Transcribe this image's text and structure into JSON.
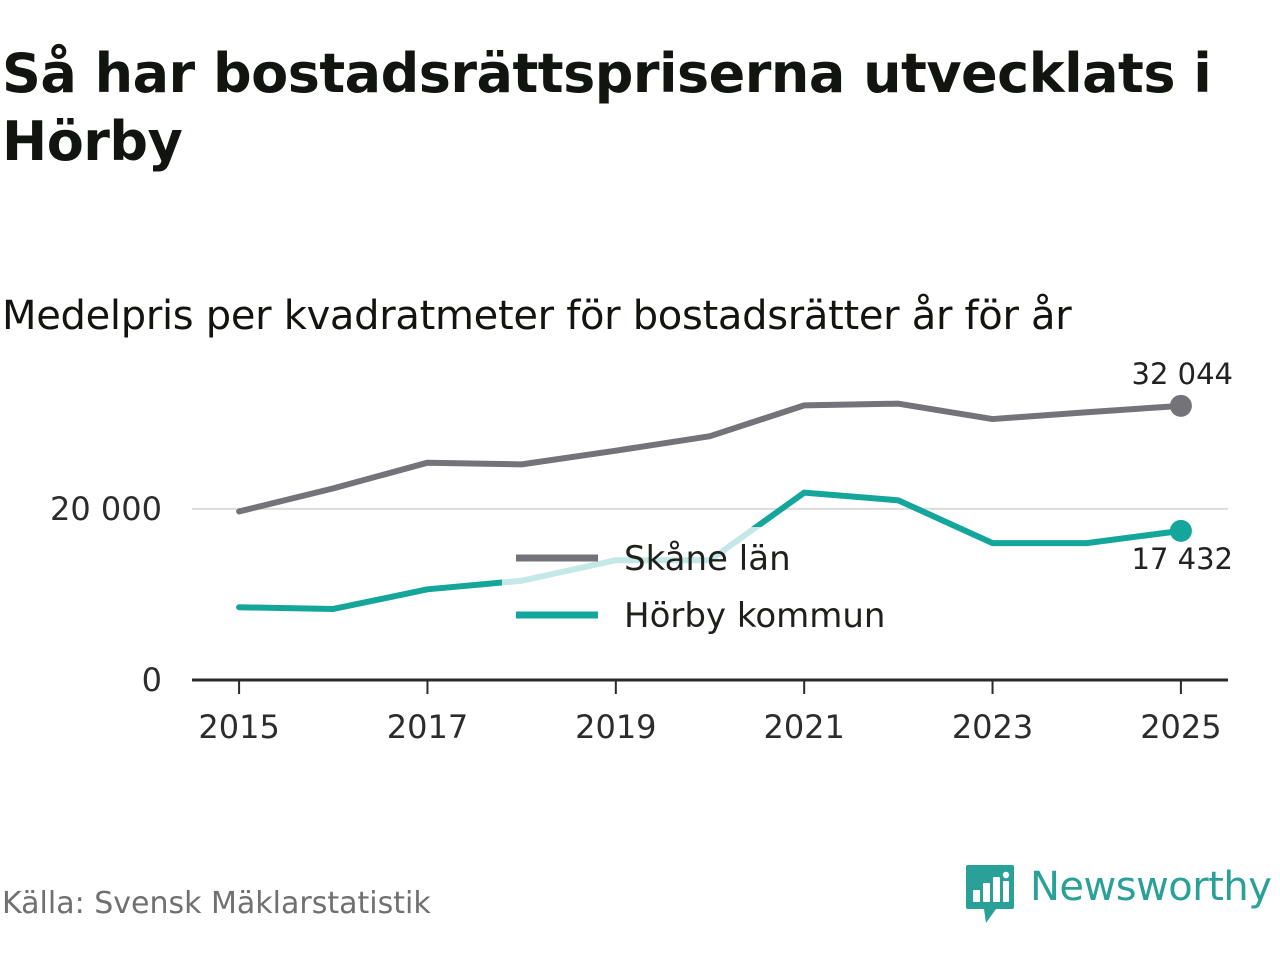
{
  "title": "Så har bostadsrättspriserna utvecklats i Hörby",
  "subtitle": "Medelpris per kvadratmeter för bostadsrätter år för år",
  "source": "Källa: Svensk Mäklarstatistik",
  "brand": {
    "name": "Newsworthy",
    "icon": "newsworthy-logo-icon",
    "color": "#2aa198"
  },
  "chart_data": {
    "type": "line",
    "title": "Så har bostadsrättspriserna utvecklats i Hörby",
    "subtitle": "Medelpris per kvadratmeter för bostadsrätter år för år",
    "xlabel": "",
    "ylabel": "",
    "x": [
      2015,
      2016,
      2017,
      2018,
      2019,
      2020,
      2021,
      2022,
      2023,
      2024,
      2025
    ],
    "xlim": [
      2014.5,
      2025.5
    ],
    "ylim": [
      0,
      36000
    ],
    "x_ticks": [
      {
        "value": 2015,
        "label": "2015"
      },
      {
        "value": 2017,
        "label": "2017"
      },
      {
        "value": 2019,
        "label": "2019"
      },
      {
        "value": 2021,
        "label": "2021"
      },
      {
        "value": 2023,
        "label": "2023"
      },
      {
        "value": 2025,
        "label": "2025"
      }
    ],
    "y_ticks": [
      {
        "value": 0,
        "label": "0"
      },
      {
        "value": 20000,
        "label": "20 000"
      }
    ],
    "grid": "horizontal",
    "legend_position": "center",
    "series": [
      {
        "name": "Skåne län",
        "color": "#747379",
        "values": [
          19700,
          22400,
          25400,
          25200,
          26800,
          28500,
          32100,
          32300,
          30500,
          31300,
          32044
        ],
        "end_label": "32 044"
      },
      {
        "name": "Hörby kommun",
        "color": "#14a59b",
        "values": [
          8500,
          8300,
          10600,
          11600,
          14000,
          14000,
          21900,
          21000,
          16000,
          16000,
          17432
        ],
        "end_label": "17 432"
      }
    ]
  }
}
